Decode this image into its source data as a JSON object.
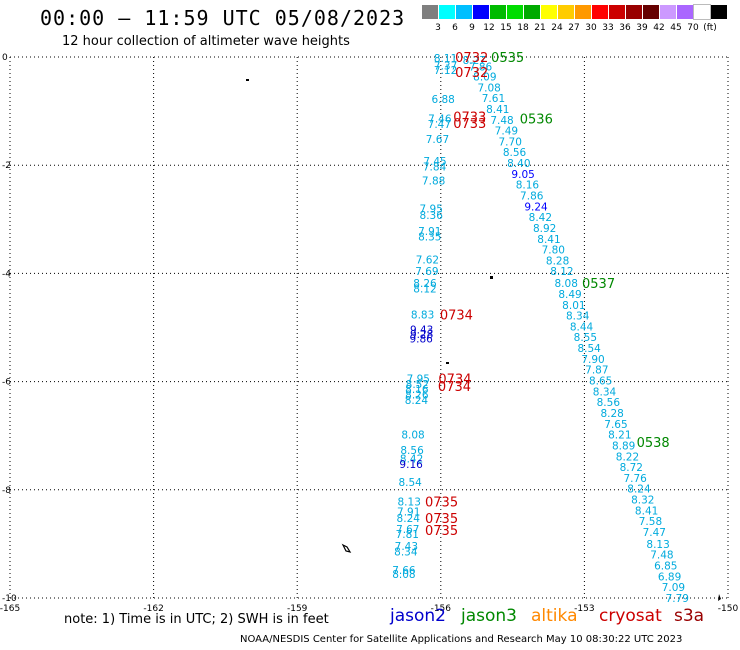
{
  "header": {
    "title": "00:00 – 11:59 UTC 05/08/2023",
    "subtitle": "12 hour collection of altimeter wave heights"
  },
  "color_scale": {
    "colors": [
      "#7f7f7f",
      "#00ffff",
      "#00bfff",
      "#0000ff",
      "#00bb00",
      "#00dd00",
      "#00aa00",
      "#ffff00",
      "#ffcc00",
      "#ff9900",
      "#ff0000",
      "#cc0000",
      "#990000",
      "#660000",
      "#cc99ff",
      "#aa66ff",
      "#ffffff",
      "#000000"
    ],
    "labels": [
      "3",
      "6",
      "9",
      "12",
      "15",
      "18",
      "21",
      "24",
      "27",
      "30",
      "33",
      "36",
      "39",
      "42",
      "45",
      "70",
      "(ft)"
    ]
  },
  "note": "note:  1) Time is in UTC;  2) SWH is in feet",
  "satellites": [
    {
      "name": "jason2",
      "color": "#0000cc"
    },
    {
      "name": "jason3",
      "color": "#008800"
    },
    {
      "name": "altika",
      "color": "#ff8800"
    },
    {
      "name": "cryosat",
      "color": "#cc0000"
    },
    {
      "name": "s3a",
      "color": "#990000"
    }
  ],
  "credit": "NOAA/NESDIS Center for Satellite Applications and Research    May 10 08:30:22 UTC 2023",
  "chart_data": {
    "type": "scatter",
    "x_label": "longitude",
    "y_label": "latitude",
    "xlim": [
      -165,
      -150
    ],
    "ylim": [
      -10,
      0
    ],
    "x_ticks": [
      -165,
      -162,
      -159,
      -156,
      -153,
      -150
    ],
    "x_tick_labels": [
      "-165",
      "-162",
      "-159",
      "-156",
      "-153",
      "-150"
    ],
    "y_ticks": [
      0,
      -2,
      -4,
      -6,
      -8,
      -10
    ],
    "y_tick_labels": [
      "0",
      "-2",
      "-4",
      "-6",
      "-8",
      "-10"
    ],
    "grid": true,
    "series": [
      {
        "name": "jason3",
        "color": "#00aadd",
        "points": [
          {
            "lon": -155.3,
            "lat": -0.06,
            "v": "8.27"
          },
          {
            "lon": -155.17,
            "lat": -0.18,
            "v": "7.86"
          },
          {
            "lon": -155.08,
            "lat": -0.36,
            "v": "8.09"
          },
          {
            "lon": -154.99,
            "lat": -0.56,
            "v": "7.08"
          },
          {
            "lon": -154.9,
            "lat": -0.76,
            "v": "7.61"
          },
          {
            "lon": -154.81,
            "lat": -0.96,
            "v": "8.41"
          },
          {
            "lon": -154.72,
            "lat": -1.16,
            "v": "7.48"
          },
          {
            "lon": -154.63,
            "lat": -1.36,
            "v": "7.49"
          },
          {
            "lon": -154.55,
            "lat": -1.56,
            "v": "7.70"
          },
          {
            "lon": -154.46,
            "lat": -1.76,
            "v": "8.56"
          },
          {
            "lon": -154.37,
            "lat": -1.96,
            "v": "8.40"
          },
          {
            "lon": -154.28,
            "lat": -2.16,
            "v": "9.05",
            "c": "#0000ff"
          },
          {
            "lon": -154.19,
            "lat": -2.36,
            "v": "8.16"
          },
          {
            "lon": -154.1,
            "lat": -2.56,
            "v": "7.86"
          },
          {
            "lon": -154.01,
            "lat": -2.76,
            "v": "9.24",
            "c": "#0000ff"
          },
          {
            "lon": -153.92,
            "lat": -2.96,
            "v": "8.42"
          },
          {
            "lon": -153.83,
            "lat": -3.16,
            "v": "8.92"
          },
          {
            "lon": -153.74,
            "lat": -3.36,
            "v": "8.41"
          },
          {
            "lon": -153.65,
            "lat": -3.56,
            "v": "7.80"
          },
          {
            "lon": -153.56,
            "lat": -3.76,
            "v": "8.28"
          },
          {
            "lon": -153.47,
            "lat": -3.96,
            "v": "8.12"
          },
          {
            "lon": -153.38,
            "lat": -4.18,
            "v": "8.08"
          },
          {
            "lon": -153.3,
            "lat": -4.38,
            "v": "8.49"
          },
          {
            "lon": -153.22,
            "lat": -4.58,
            "v": "8.01"
          },
          {
            "lon": -153.14,
            "lat": -4.78,
            "v": "8.34"
          },
          {
            "lon": -153.06,
            "lat": -4.98,
            "v": "8.44"
          },
          {
            "lon": -152.98,
            "lat": -5.18,
            "v": "8.55"
          },
          {
            "lon": -152.9,
            "lat": -5.38,
            "v": "8.54"
          },
          {
            "lon": -152.82,
            "lat": -5.58,
            "v": "7.90"
          },
          {
            "lon": -152.74,
            "lat": -5.78,
            "v": "7.87"
          },
          {
            "lon": -152.66,
            "lat": -5.98,
            "v": "8.65"
          },
          {
            "lon": -152.58,
            "lat": -6.18,
            "v": "8.34"
          },
          {
            "lon": -152.5,
            "lat": -6.38,
            "v": "8.56"
          },
          {
            "lon": -152.42,
            "lat": -6.58,
            "v": "8.28"
          },
          {
            "lon": -152.34,
            "lat": -6.78,
            "v": "7.65"
          },
          {
            "lon": -152.26,
            "lat": -6.98,
            "v": "8.21"
          },
          {
            "lon": -152.18,
            "lat": -7.18,
            "v": "8.89"
          },
          {
            "lon": -152.1,
            "lat": -7.38,
            "v": "8.22"
          },
          {
            "lon": -152.02,
            "lat": -7.58,
            "v": "8.72"
          },
          {
            "lon": -151.94,
            "lat": -7.78,
            "v": "7.76"
          },
          {
            "lon": -151.86,
            "lat": -7.98,
            "v": "8.24"
          },
          {
            "lon": -151.78,
            "lat": -8.18,
            "v": "8.32"
          },
          {
            "lon": -151.7,
            "lat": -8.38,
            "v": "8.41"
          },
          {
            "lon": -151.62,
            "lat": -8.58,
            "v": "7.58"
          },
          {
            "lon": -151.54,
            "lat": -8.78,
            "v": "7.47"
          },
          {
            "lon": -151.46,
            "lat": -9.0,
            "v": "8.13"
          },
          {
            "lon": -151.38,
            "lat": -9.2,
            "v": "7.48"
          },
          {
            "lon": -151.3,
            "lat": -9.4,
            "v": "6.85"
          },
          {
            "lon": -151.22,
            "lat": -9.6,
            "v": "6.89"
          },
          {
            "lon": -151.14,
            "lat": -9.8,
            "v": "7.09"
          },
          {
            "lon": -151.06,
            "lat": -10.0,
            "v": "7.79"
          }
        ]
      },
      {
        "name": "cryosat",
        "color": "#00aadd",
        "points": [
          {
            "lon": -155.9,
            "lat": -0.02,
            "v": "8.11"
          },
          {
            "lon": -155.9,
            "lat": -0.16,
            "v": "7.37"
          },
          {
            "lon": -155.9,
            "lat": -0.24,
            "v": "7.12"
          },
          {
            "lon": -155.95,
            "lat": -0.78,
            "v": "6.88"
          },
          {
            "lon": -156.02,
            "lat": -1.14,
            "v": "7.46"
          },
          {
            "lon": -156.03,
            "lat": -1.24,
            "v": "7.47"
          },
          {
            "lon": -156.07,
            "lat": -1.52,
            "v": "7.67"
          },
          {
            "lon": -156.12,
            "lat": -1.92,
            "v": "7.45"
          },
          {
            "lon": -156.13,
            "lat": -2.02,
            "v": "7.84"
          },
          {
            "lon": -156.15,
            "lat": -2.28,
            "v": "7.88"
          },
          {
            "lon": -156.2,
            "lat": -2.8,
            "v": "7.95"
          },
          {
            "lon": -156.2,
            "lat": -2.92,
            "v": "8.36"
          },
          {
            "lon": -156.23,
            "lat": -3.22,
            "v": "7.91"
          },
          {
            "lon": -156.23,
            "lat": -3.32,
            "v": "8.35"
          },
          {
            "lon": -156.28,
            "lat": -3.74,
            "v": "7.62"
          },
          {
            "lon": -156.29,
            "lat": -3.96,
            "v": "7.69"
          },
          {
            "lon": -156.33,
            "lat": -4.18,
            "v": "8.26"
          },
          {
            "lon": -156.33,
            "lat": -4.28,
            "v": "8.12"
          },
          {
            "lon": -156.38,
            "lat": -4.76,
            "v": "8.83"
          },
          {
            "lon": -156.4,
            "lat": -5.04,
            "v": "9.43",
            "c": "#0000cc"
          },
          {
            "lon": -156.4,
            "lat": -5.12,
            "v": "9.28",
            "c": "#0000cc"
          },
          {
            "lon": -156.41,
            "lat": -5.2,
            "v": "9.86",
            "c": "#0000cc"
          },
          {
            "lon": -156.47,
            "lat": -5.94,
            "v": "7.95"
          },
          {
            "lon": -156.49,
            "lat": -6.04,
            "v": "8.52"
          },
          {
            "lon": -156.5,
            "lat": -6.14,
            "v": "8.16"
          },
          {
            "lon": -156.5,
            "lat": -6.24,
            "v": "8.26"
          },
          {
            "lon": -156.51,
            "lat": -6.34,
            "v": "8.24"
          },
          {
            "lon": -156.58,
            "lat": -6.98,
            "v": "8.08"
          },
          {
            "lon": -156.6,
            "lat": -7.26,
            "v": "8.56"
          },
          {
            "lon": -156.61,
            "lat": -7.42,
            "v": "8.42"
          },
          {
            "lon": -156.62,
            "lat": -7.52,
            "v": "9.16",
            "c": "#0000cc"
          },
          {
            "lon": -156.64,
            "lat": -7.86,
            "v": "8.54"
          },
          {
            "lon": -156.66,
            "lat": -8.22,
            "v": "8.13"
          },
          {
            "lon": -156.67,
            "lat": -8.4,
            "v": "7.91"
          },
          {
            "lon": -156.68,
            "lat": -8.52,
            "v": "8.24"
          },
          {
            "lon": -156.69,
            "lat": -8.72,
            "v": "7.67"
          },
          {
            "lon": -156.7,
            "lat": -8.82,
            "v": "7.81"
          },
          {
            "lon": -156.72,
            "lat": -9.04,
            "v": "7.43"
          },
          {
            "lon": -156.73,
            "lat": -9.14,
            "v": "8.34"
          },
          {
            "lon": -156.77,
            "lat": -9.48,
            "v": "7.66"
          },
          {
            "lon": -156.77,
            "lat": -9.56,
            "v": "8.08"
          }
        ]
      }
    ],
    "time_labels": [
      {
        "lon": -155.7,
        "lat": 0.0,
        "text": "0732",
        "color": "#cc0000"
      },
      {
        "lon": -155.7,
        "lat": -0.28,
        "text": "0732",
        "color": "#cc0000"
      },
      {
        "lon": -155.74,
        "lat": -1.1,
        "text": "0733",
        "color": "#cc0000"
      },
      {
        "lon": -155.74,
        "lat": -1.22,
        "text": "0733",
        "color": "#cc0000"
      },
      {
        "lon": -156.02,
        "lat": -4.76,
        "text": "0734",
        "color": "#cc0000"
      },
      {
        "lon": -156.05,
        "lat": -5.94,
        "text": "0734",
        "color": "#cc0000"
      },
      {
        "lon": -156.06,
        "lat": -6.08,
        "text": "0734",
        "color": "#cc0000"
      },
      {
        "lon": -156.33,
        "lat": -8.22,
        "text": "0735",
        "color": "#cc0000"
      },
      {
        "lon": -156.33,
        "lat": -8.52,
        "text": "0735",
        "color": "#cc0000"
      },
      {
        "lon": -156.33,
        "lat": -8.74,
        "text": "0735",
        "color": "#cc0000"
      },
      {
        "lon": -154.95,
        "lat": 0.0,
        "text": "0535",
        "color": "#008800"
      },
      {
        "lon": -154.35,
        "lat": -1.14,
        "text": "0536",
        "color": "#008800"
      },
      {
        "lon": -153.05,
        "lat": -4.18,
        "text": "0537",
        "color": "#008800"
      },
      {
        "lon": -151.91,
        "lat": -7.12,
        "text": "0538",
        "color": "#008800"
      }
    ]
  }
}
